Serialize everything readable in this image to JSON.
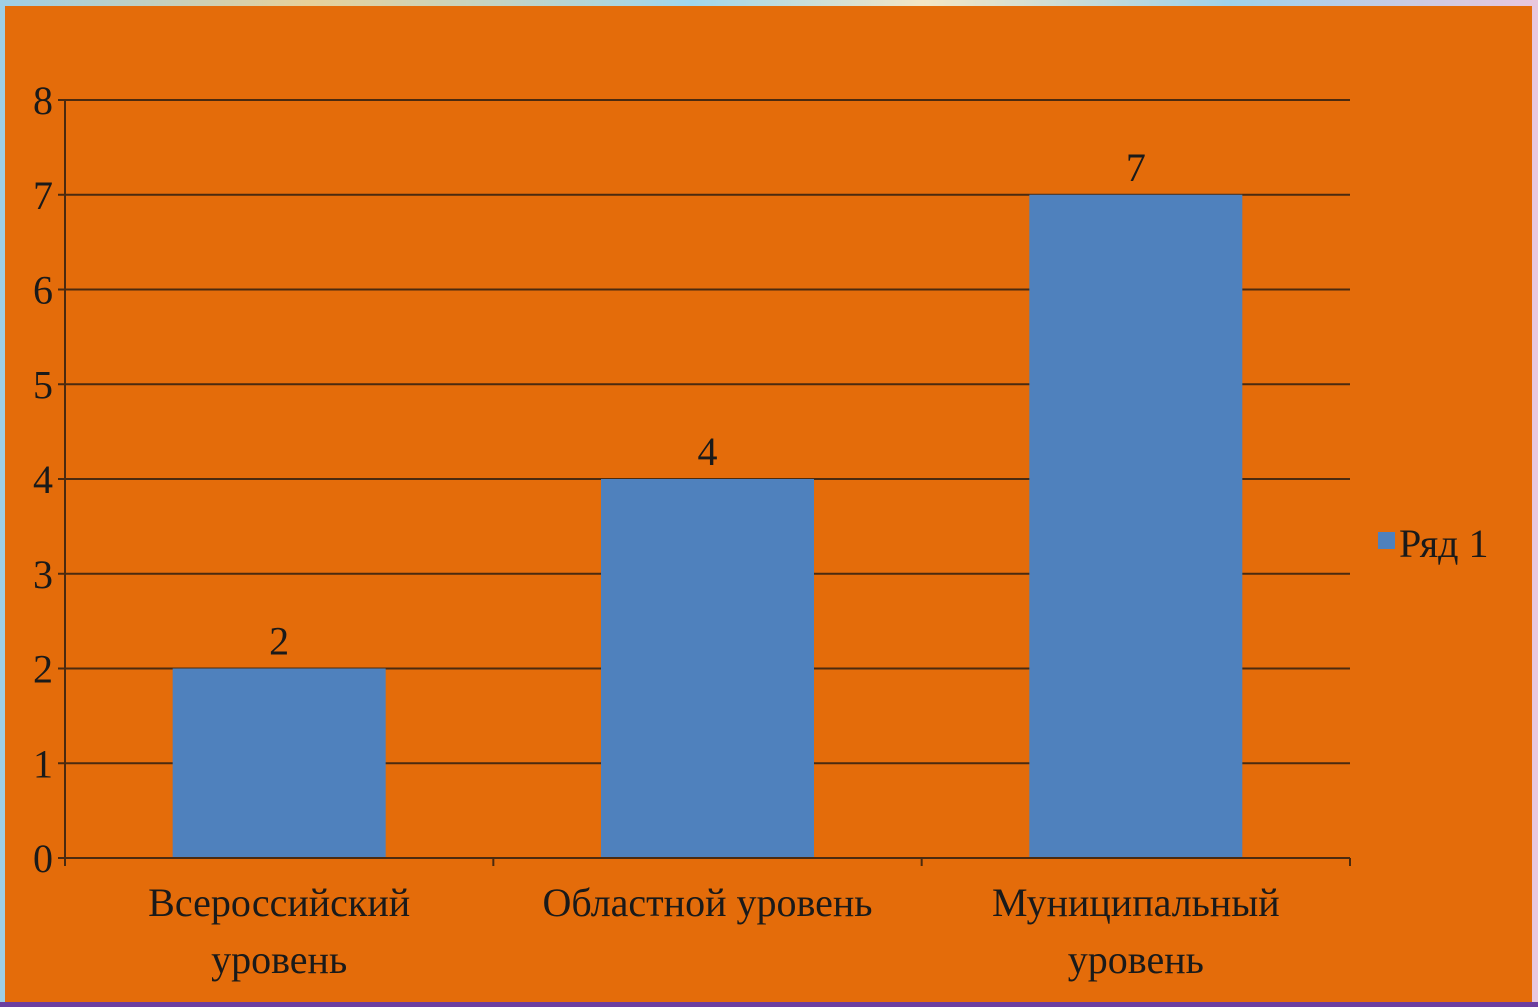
{
  "chart_data": {
    "type": "bar",
    "categories": [
      [
        "Всероссийский",
        "уровень"
      ],
      [
        "Областной уровень"
      ],
      [
        "Муниципальный",
        "уровень"
      ]
    ],
    "series": [
      {
        "name": "Ряд 1",
        "values": [
          2,
          4,
          7
        ],
        "color": "#4f81bd"
      }
    ],
    "data_labels": [
      "2",
      "4",
      "7"
    ],
    "yticks": [
      "0",
      "1",
      "2",
      "3",
      "4",
      "5",
      "6",
      "7",
      "8"
    ],
    "ylim": [
      0,
      8
    ],
    "grid": true,
    "legend_position": "right",
    "background_color": "#e46c0a"
  }
}
